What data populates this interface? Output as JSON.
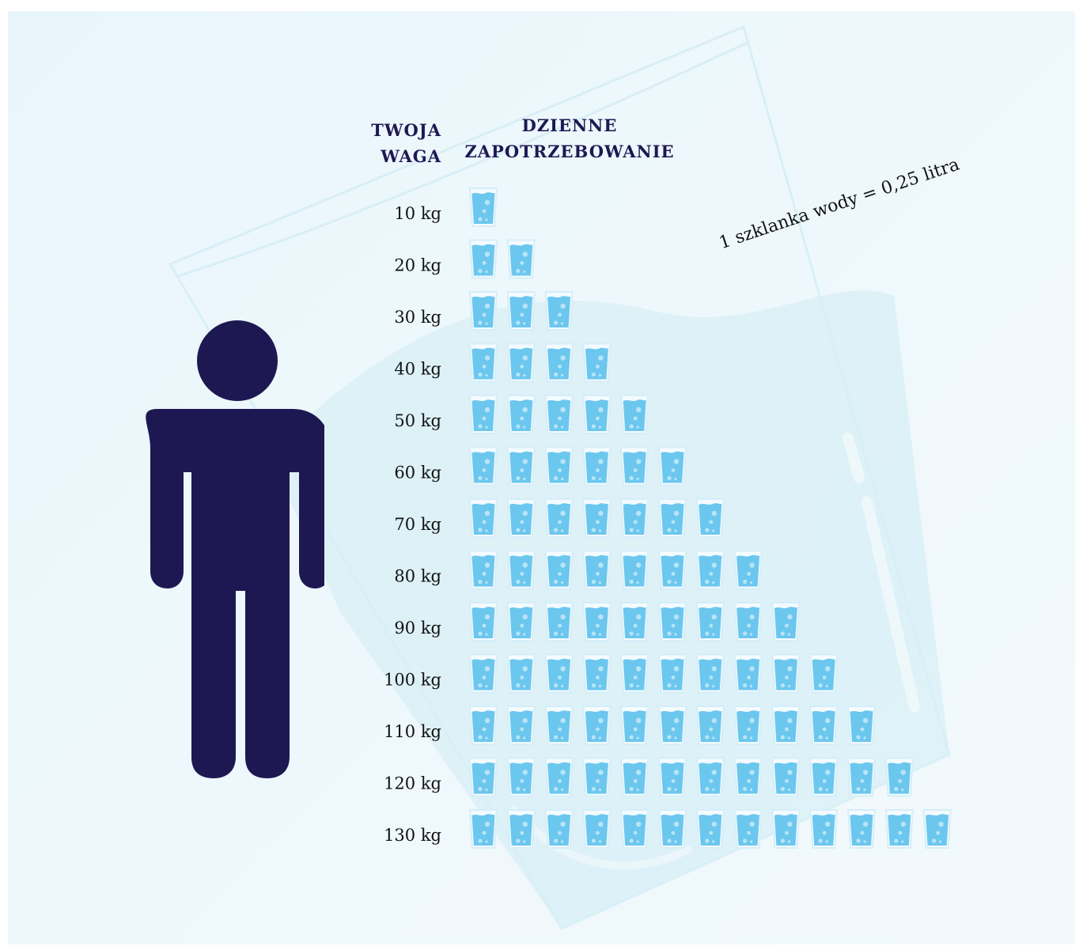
{
  "headers": {
    "weight_line1": "TWOJA",
    "weight_line2": "WAGA",
    "need_line1": "DZIENNE",
    "need_line2": "ZAPOTRZEBOWANIE"
  },
  "note": "1 szklanka wody = 0,25 litra",
  "colors": {
    "person": "#1e1852",
    "glass_water": "#6cc7ee",
    "glass_outline": "#d5eef9",
    "bubbles": "#b9e4f7",
    "header_text": "#1e1852"
  },
  "icons": {
    "person": "person-icon",
    "glass": "water-glass-icon"
  },
  "chart_data": {
    "type": "pictograph",
    "categories": [
      "10 kg",
      "20 kg",
      "30 kg",
      "40 kg",
      "50 kg",
      "60 kg",
      "70 kg",
      "80 kg",
      "90 kg",
      "100 kg",
      "110 kg",
      "120 kg",
      "130 kg"
    ],
    "weights_kg": [
      10,
      20,
      30,
      40,
      50,
      60,
      70,
      80,
      90,
      100,
      110,
      120,
      130
    ],
    "values": [
      1,
      2,
      3,
      4,
      5,
      6,
      7,
      8,
      9,
      10,
      11,
      12,
      13
    ],
    "unit_value_liters": 0.25
  }
}
